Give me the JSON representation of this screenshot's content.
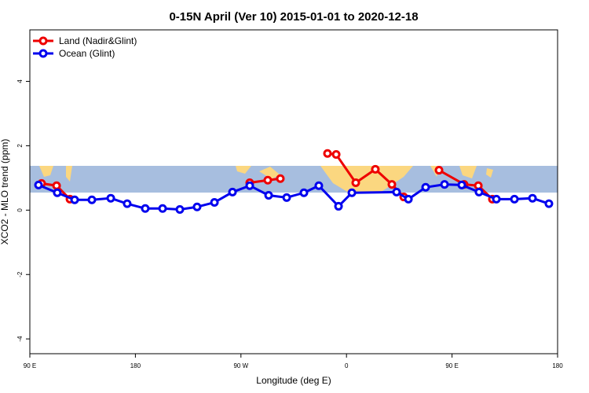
{
  "chart_data": {
    "type": "line",
    "title": "0-15N April (Ver 10)   2015-01-01 to 2020-12-18",
    "xlabel": "Longitude (deg E)",
    "ylabel": "XCO2 - MLO trend (ppm)",
    "xlim": [
      90,
      540
    ],
    "ylim": [
      -4.46,
      5.6
    ],
    "xticks": [
      {
        "value": 90,
        "label": "90 E"
      },
      {
        "value": 180,
        "label": "180"
      },
      {
        "value": 270,
        "label": "90 W"
      },
      {
        "value": 360,
        "label": "0"
      },
      {
        "value": 450,
        "label": "90 E"
      },
      {
        "value": 540,
        "label": "180"
      }
    ],
    "yticks": [
      -4,
      -2,
      0,
      2,
      4
    ],
    "legend": "top-left",
    "series": [
      {
        "name": "Land (Nadir&Glint)",
        "color": "#ee0000",
        "x": [
          100,
          112.8,
          124.2,
          null,
          277.5,
          292.9,
          303.6,
          null,
          343.8,
          351.2,
          367.9,
          384.6,
          398.7,
          408.8,
          null,
          438.9,
          460.3,
          472.4,
          484.4
        ],
        "values": [
          0.83,
          0.76,
          0.34,
          null,
          0.85,
          0.93,
          0.98,
          null,
          1.76,
          1.73,
          0.85,
          1.27,
          0.8,
          0.41,
          null,
          1.24,
          0.8,
          0.76,
          0.34
        ]
      },
      {
        "name": "Ocean (Glint)",
        "color": "#0000ee",
        "x": [
          97.4,
          113.4,
          128.2,
          142.9,
          159,
          173,
          188.4,
          203.2,
          217.9,
          232.6,
          247.4,
          262.8,
          277.5,
          293.6,
          309,
          323.7,
          336.4,
          353.2,
          364.6,
          402.7,
          412.8,
          427.5,
          443.6,
          458.3,
          473,
          487.8,
          503.2,
          518.6,
          532.6
        ],
        "values": [
          0.78,
          0.54,
          0.32,
          0.32,
          0.37,
          0.2,
          0.05,
          0.05,
          0.02,
          0.1,
          0.24,
          0.56,
          0.76,
          0.46,
          0.39,
          0.54,
          0.76,
          0.12,
          0.54,
          0.56,
          0.34,
          0.71,
          0.8,
          0.78,
          0.56,
          0.34,
          0.34,
          0.37,
          0.2
        ]
      }
    ]
  }
}
